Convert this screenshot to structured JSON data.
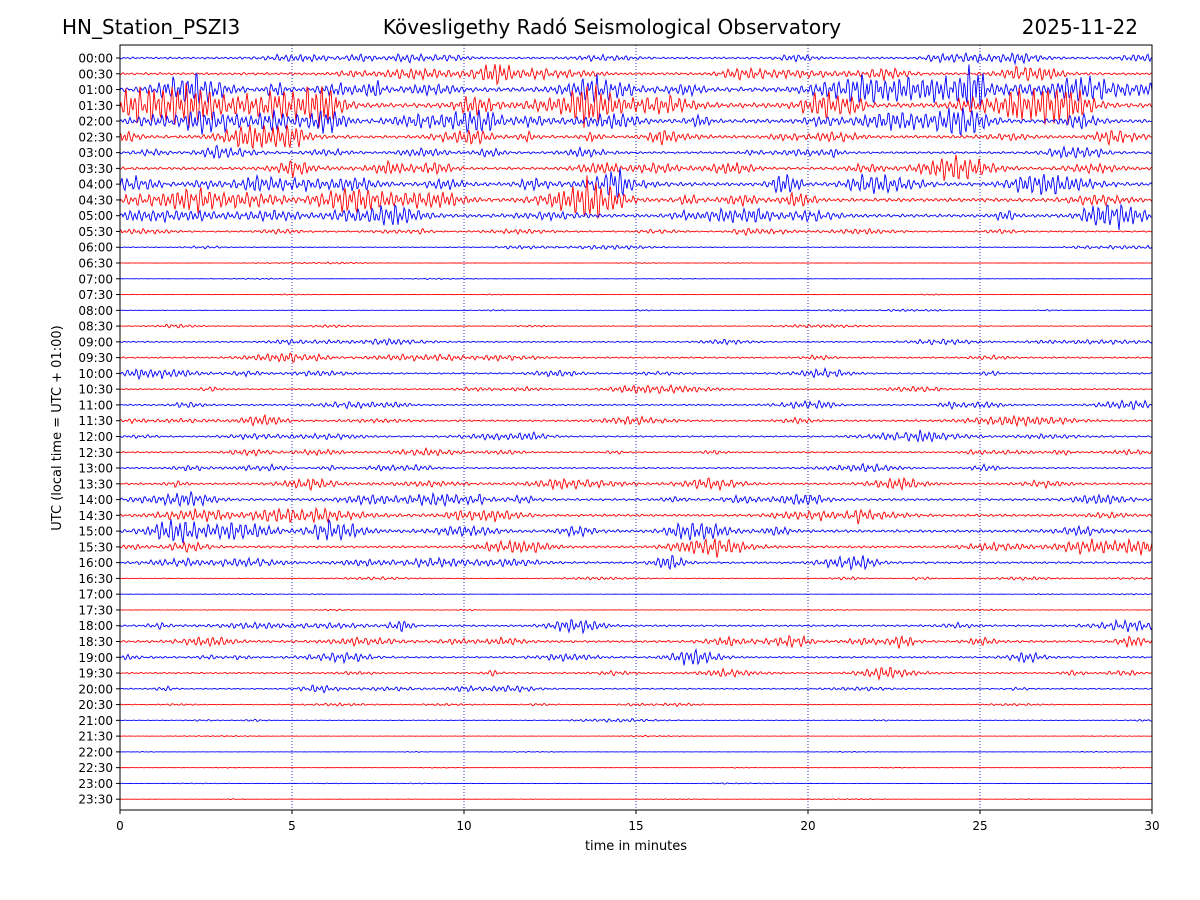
{
  "header": {
    "station": "HN_Station_PSZI3",
    "title": "Kövesligethy Radó Seismological Observatory",
    "date": "2025-11-22"
  },
  "chart_data": {
    "type": "line",
    "title": "Kövesligethy Radó Seismological Observatory",
    "xlabel": "time in minutes",
    "ylabel": "UTC (local time = UTC + 01:00)",
    "xlim": [
      0,
      30
    ],
    "x_ticks": [
      0,
      5,
      10,
      15,
      20,
      25,
      30
    ],
    "y_tick_labels": [
      "00:00",
      "00:30",
      "01:00",
      "01:30",
      "02:00",
      "02:30",
      "03:00",
      "03:30",
      "04:00",
      "04:30",
      "05:00",
      "05:30",
      "06:00",
      "06:30",
      "07:00",
      "07:30",
      "08:00",
      "08:30",
      "09:00",
      "09:30",
      "10:00",
      "10:30",
      "11:00",
      "11:30",
      "12:00",
      "12:30",
      "13:00",
      "13:30",
      "14:00",
      "14:30",
      "15:00",
      "15:30",
      "16:00",
      "16:30",
      "17:00",
      "17:30",
      "18:00",
      "18:30",
      "19:00",
      "19:30",
      "20:00",
      "20:30",
      "21:00",
      "21:30",
      "22:00",
      "22:30",
      "23:00",
      "23:30"
    ],
    "trace_colors": [
      "#0000ff",
      "#ff0000"
    ],
    "grid": "vertical dotted lines at x ticks",
    "relative_amplitude": [
      0.4,
      0.5,
      0.9,
      1.0,
      0.8,
      0.6,
      0.45,
      0.55,
      0.7,
      0.7,
      0.65,
      0.3,
      0.15,
      0.05,
      0.05,
      0.05,
      0.08,
      0.12,
      0.25,
      0.3,
      0.3,
      0.25,
      0.3,
      0.35,
      0.3,
      0.3,
      0.3,
      0.4,
      0.45,
      0.5,
      0.55,
      0.45,
      0.4,
      0.15,
      0.05,
      0.08,
      0.35,
      0.45,
      0.35,
      0.3,
      0.25,
      0.15,
      0.12,
      0.05,
      0.05,
      0.05,
      0.05,
      0.05
    ]
  }
}
